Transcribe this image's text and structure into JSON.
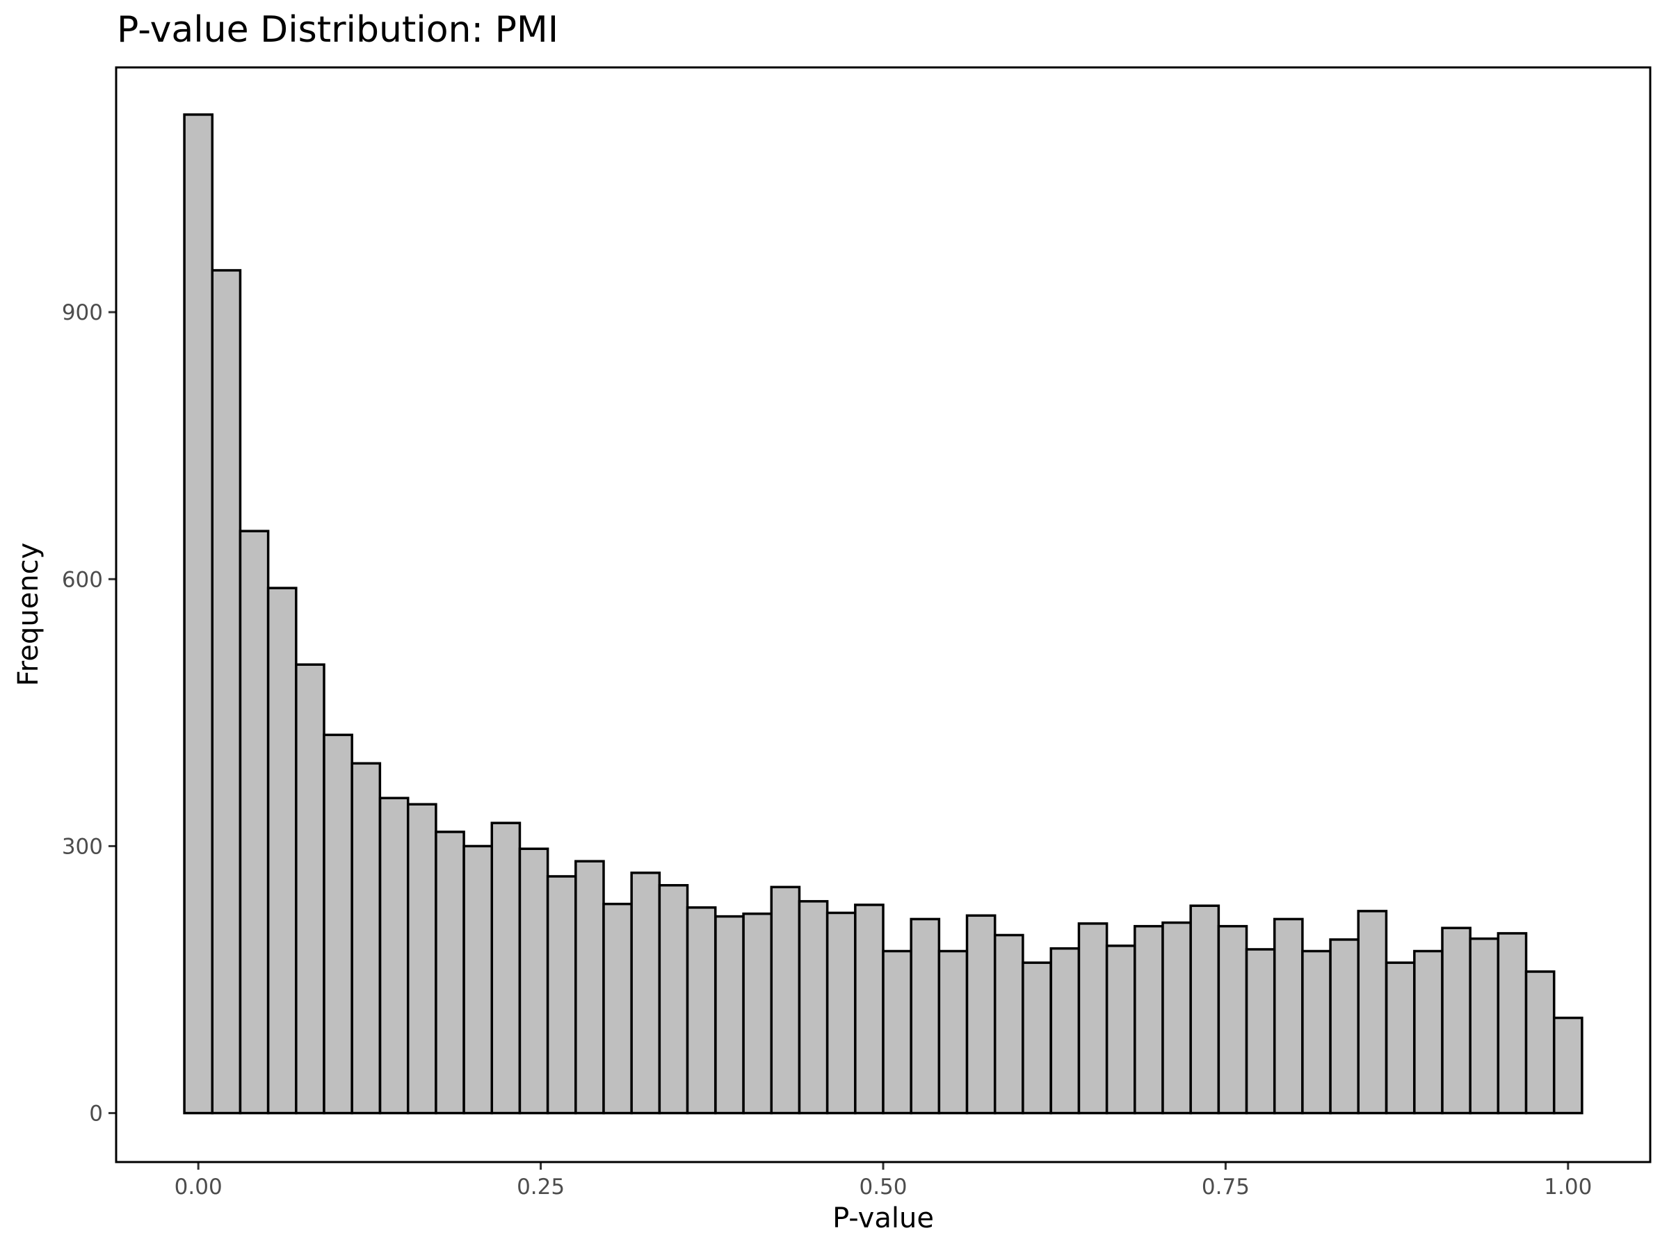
{
  "chart_data": {
    "type": "bar",
    "title": "P-value Distribution: PMI",
    "xlabel": "P-value",
    "ylabel": "Frequency",
    "bins": 50,
    "bin_width": 0.0204,
    "xlim": [
      -0.06,
      1.06
    ],
    "ylim": [
      -55,
      1175
    ],
    "x_ticks": [
      0.0,
      0.25,
      0.5,
      0.75,
      1.0
    ],
    "x_tick_labels": [
      "0.00",
      "0.25",
      "0.50",
      "0.75",
      "1.00"
    ],
    "y_ticks": [
      0,
      300,
      600,
      900
    ],
    "y_tick_labels": [
      "0",
      "300",
      "600",
      "900"
    ],
    "bar_fill": "#bfbfbf",
    "bar_outline": "#000000",
    "grid": false,
    "x": [
      0.0,
      0.0204,
      0.0408,
      0.0612,
      0.0816,
      0.102,
      0.1224,
      0.1429,
      0.1633,
      0.1837,
      0.2041,
      0.2245,
      0.2449,
      0.2653,
      0.2857,
      0.3061,
      0.3265,
      0.3469,
      0.3673,
      0.3878,
      0.4082,
      0.4286,
      0.449,
      0.4694,
      0.4898,
      0.5102,
      0.5306,
      0.551,
      0.5714,
      0.5918,
      0.6122,
      0.6327,
      0.6531,
      0.6735,
      0.6939,
      0.7143,
      0.7347,
      0.7551,
      0.7755,
      0.7959,
      0.8163,
      0.8367,
      0.8571,
      0.8776,
      0.898,
      0.9184,
      0.9388,
      0.9592,
      0.9796,
      1.0
    ],
    "values": [
      1122,
      947,
      654,
      590,
      504,
      425,
      393,
      354,
      347,
      316,
      300,
      326,
      297,
      266,
      283,
      235,
      270,
      256,
      231,
      221,
      224,
      254,
      238,
      225,
      234,
      182,
      218,
      182,
      222,
      200,
      169,
      185,
      213,
      188,
      210,
      214,
      233,
      210,
      184,
      218,
      182,
      195,
      227,
      169,
      182,
      208,
      196,
      202,
      159,
      107
    ]
  }
}
